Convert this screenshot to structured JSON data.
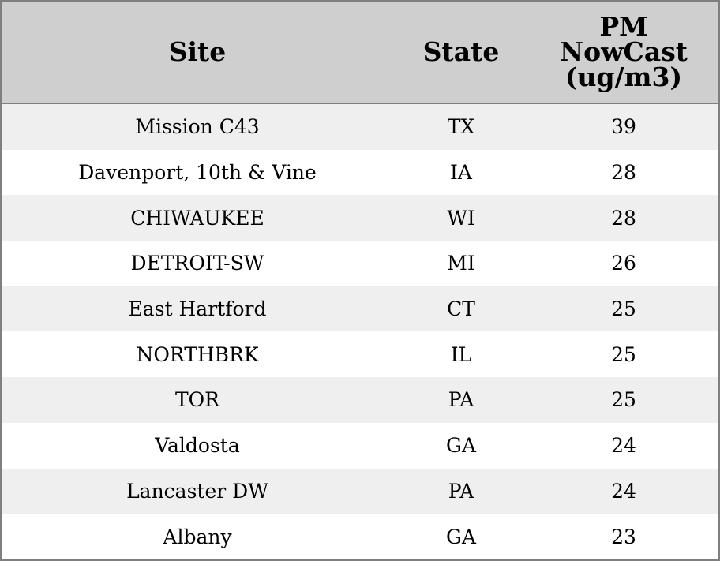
{
  "chart_data": {
    "type": "table",
    "columns": [
      "Site",
      "State",
      "PM\nNowCast\n(ug/m3)"
    ],
    "rows": [
      {
        "site": "Mission C43",
        "state": "TX",
        "pm": "39"
      },
      {
        "site": "Davenport, 10th & Vine",
        "state": "IA",
        "pm": "28"
      },
      {
        "site": "CHIWAUKEE",
        "state": "WI",
        "pm": "28"
      },
      {
        "site": "DETROIT-SW",
        "state": "MI",
        "pm": "26"
      },
      {
        "site": "East Hartford",
        "state": "CT",
        "pm": "25"
      },
      {
        "site": "NORTHBRK",
        "state": "IL",
        "pm": "25"
      },
      {
        "site": "TOR",
        "state": "PA",
        "pm": "25"
      },
      {
        "site": "Valdosta",
        "state": "GA",
        "pm": "24"
      },
      {
        "site": "Lancaster DW",
        "state": "PA",
        "pm": "24"
      },
      {
        "site": "Albany",
        "state": "GA",
        "pm": "23"
      }
    ],
    "colors": {
      "header_bg": "#cfcfcf",
      "row_alt_bg": "#efefef",
      "row_bg": "#ffffff",
      "border": "#7f7f7f"
    }
  }
}
